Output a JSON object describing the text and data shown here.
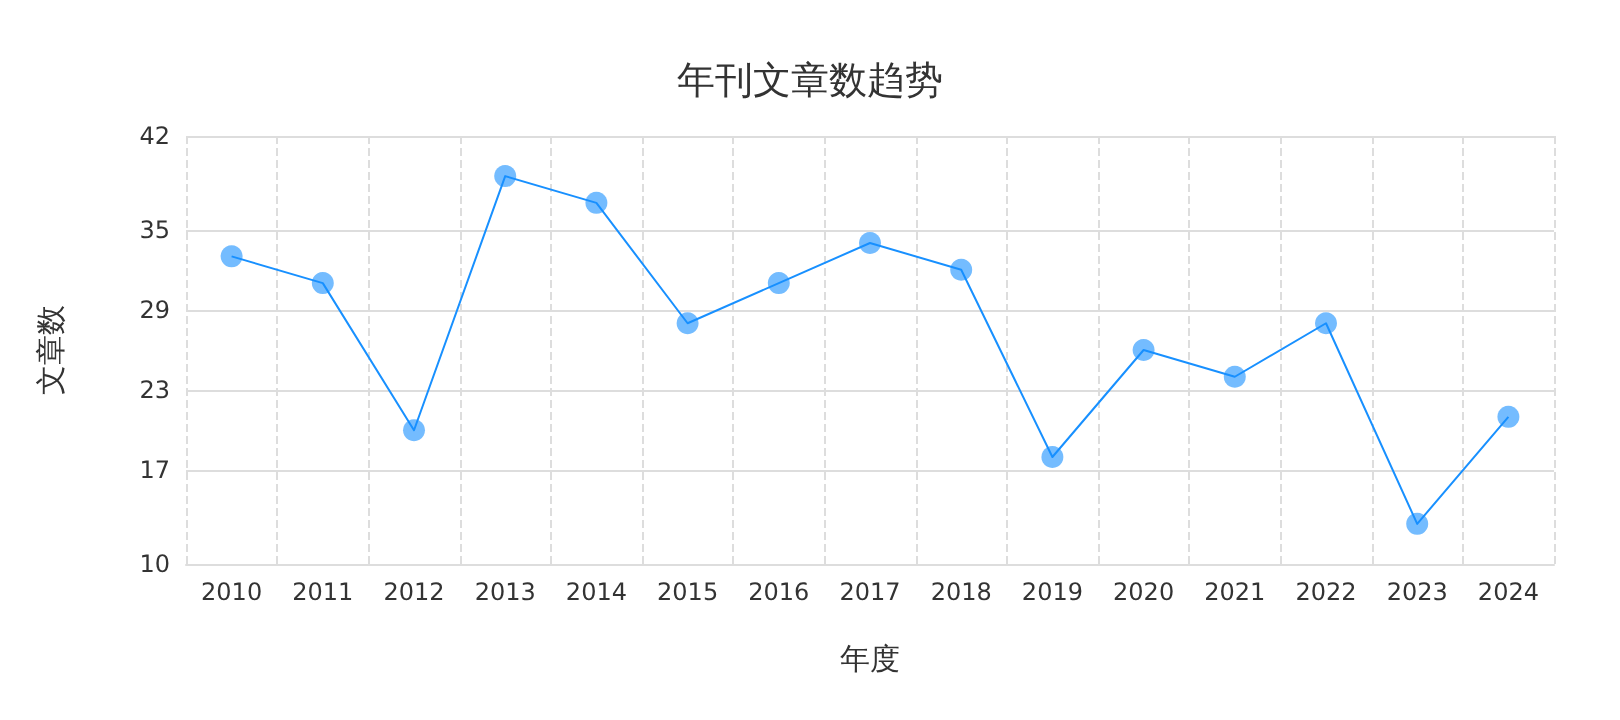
{
  "chart_data": {
    "type": "line",
    "title": "年刊文章数趋势",
    "xlabel": "年度",
    "ylabel": "文章数",
    "categories": [
      "2010",
      "2011",
      "2012",
      "2013",
      "2014",
      "2015",
      "2016",
      "2017",
      "2018",
      "2019",
      "2020",
      "2021",
      "2022",
      "2023",
      "2024"
    ],
    "series": [
      {
        "color": "#1890ff",
        "values": [
          33,
          31,
          20,
          39,
          37,
          28,
          31,
          34,
          32,
          18,
          26,
          24,
          28,
          13,
          21
        ]
      }
    ],
    "ylim": [
      10,
      42
    ],
    "yticks": [
      10,
      17,
      23,
      29,
      35,
      42
    ],
    "grid": true,
    "marker": "circle",
    "line_style": "solid"
  }
}
